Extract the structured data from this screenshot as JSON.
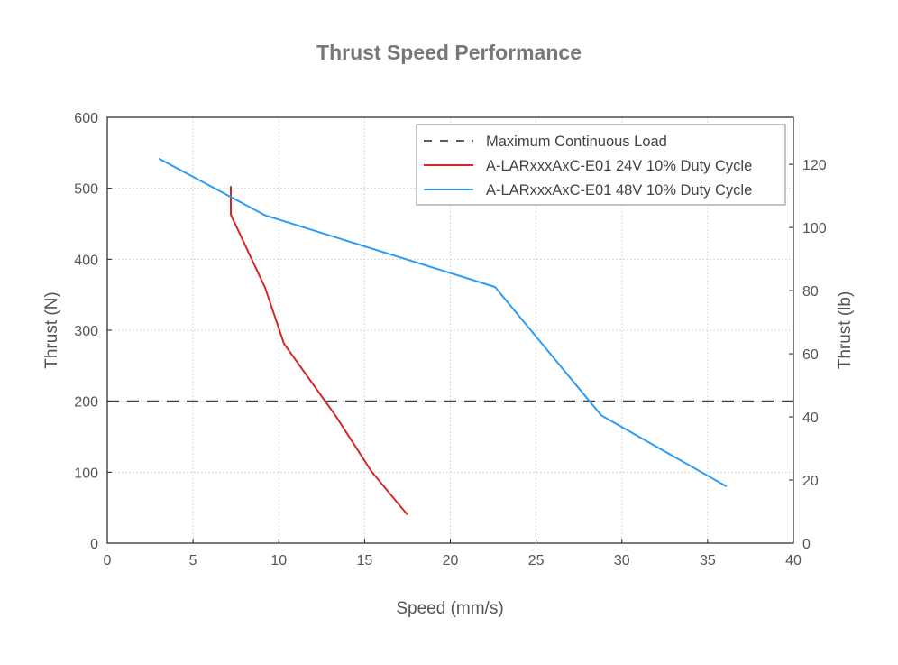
{
  "chart_data": {
    "type": "line",
    "title": "Thrust Speed Performance",
    "xlabel": "Speed (mm/s)",
    "ylabel": "Thrust (N)",
    "ylabel_right": "Thrust (lb)",
    "xlim": [
      0,
      40
    ],
    "ylim": [
      0,
      600
    ],
    "ylim_right": [
      0,
      134.9
    ],
    "xticks": [
      0,
      5,
      10,
      15,
      20,
      25,
      30,
      35,
      40
    ],
    "yticks": [
      0,
      100,
      200,
      300,
      400,
      500,
      600
    ],
    "yticks_right": [
      0,
      20,
      40,
      60,
      80,
      100,
      120
    ],
    "grid": true,
    "legend_position": "top-right",
    "series": [
      {
        "name": "Maximum Continuous Load",
        "color": "#444444",
        "style": "dashed",
        "x": [
          0,
          40
        ],
        "y": [
          200,
          200
        ]
      },
      {
        "name": "A-LARxxxAxC-E01 24V 10% Duty Cycle",
        "color": "#d62728",
        "style": "solid",
        "x": [
          7.2,
          7.2,
          9.2,
          10.3,
          13.3,
          15.4,
          17.5
        ],
        "y": [
          503,
          463,
          360,
          281,
          180,
          101,
          40
        ]
      },
      {
        "name": "A-LARxxxAxC-E01 48V 10% Duty Cycle",
        "color": "#2f9cf2",
        "style": "solid",
        "x": [
          3.0,
          9.2,
          22.6,
          28.8,
          36.1
        ],
        "y": [
          542,
          462,
          361,
          180,
          80
        ]
      }
    ]
  }
}
